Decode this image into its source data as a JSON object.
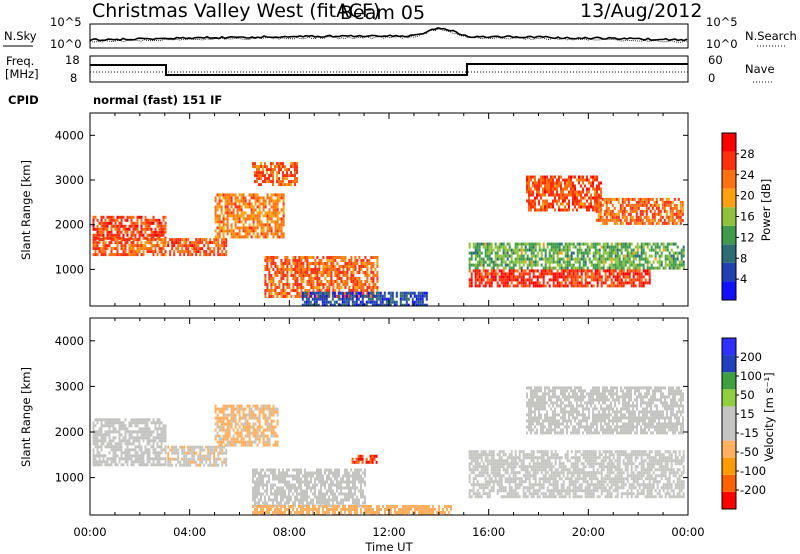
{
  "header": {
    "title": "Christmas Valley West (fitACF)",
    "beam": "Beam 05",
    "date": "13/Aug/2012"
  },
  "noise_panel": {
    "left_label": "N.Sky",
    "right_label": "N.Search",
    "left_ticks": [
      "10^5",
      "10^0"
    ],
    "right_ticks": [
      "10^5",
      "10^0"
    ]
  },
  "freq_panel": {
    "left_label_1": "Freq.",
    "left_label_2": "[MHz]",
    "right_label": "Nave",
    "left_ticks": [
      "18",
      "8"
    ],
    "right_ticks": [
      "60",
      "0"
    ]
  },
  "cpid": {
    "label": "CPID",
    "value": "normal (fast) 151 IF"
  },
  "colors": {
    "power_scale": [
      "#1010ff",
      "#2040b0",
      "#2e6c74",
      "#3f9a4c",
      "#8fc23c",
      "#ffa010",
      "#ff7010",
      "#ff3010",
      "#ff0000"
    ],
    "velocity_scale": [
      "#ff0000",
      "#ff6000",
      "#ff9a00",
      "#ffb060",
      "#c4c4c0",
      "#c4c4c0",
      "#90d040",
      "#40a040",
      "#2040c0",
      "#3030ff"
    ]
  },
  "chart_data": [
    {
      "type": "heatmap",
      "name": "power",
      "ylabel": "Slant Range [km]",
      "ylim": [
        180,
        4500
      ],
      "yticks": [
        1000,
        2000,
        3000,
        4000
      ],
      "xlim": [
        0,
        24
      ],
      "colorbar_label": "Power [dB]",
      "colorbar_range": [
        0,
        32
      ],
      "colorbar_ticks": [
        4,
        8,
        12,
        16,
        20,
        24,
        28
      ],
      "regions": [
        {
          "t0": 0.1,
          "t1": 3.0,
          "r0": 1700,
          "r1": 2200,
          "value": 26
        },
        {
          "t0": 0.1,
          "t1": 3.0,
          "r0": 1350,
          "r1": 1700,
          "value": 24
        },
        {
          "t0": 3.1,
          "t1": 5.5,
          "r0": 1300,
          "r1": 1700,
          "value": 25
        },
        {
          "t0": 5.0,
          "t1": 7.8,
          "r0": 1700,
          "r1": 2700,
          "value": 22
        },
        {
          "t0": 6.5,
          "t1": 8.3,
          "r0": 2900,
          "r1": 3400,
          "value": 24
        },
        {
          "t0": 7.0,
          "t1": 11.5,
          "r0": 400,
          "r1": 1300,
          "value": 24
        },
        {
          "t0": 8.5,
          "t1": 13.5,
          "r0": 200,
          "r1": 500,
          "value": 6
        },
        {
          "t0": 15.2,
          "t1": 23.8,
          "r0": 1000,
          "r1": 1600,
          "value": 14
        },
        {
          "t0": 15.2,
          "t1": 22.5,
          "r0": 600,
          "r1": 1000,
          "value": 27
        },
        {
          "t0": 17.5,
          "t1": 20.5,
          "r0": 2300,
          "r1": 3100,
          "value": 25
        },
        {
          "t0": 20.3,
          "t1": 23.8,
          "r0": 2000,
          "r1": 2600,
          "value": 24
        }
      ]
    },
    {
      "type": "heatmap",
      "name": "velocity",
      "ylabel": "Slant Range [km]",
      "xlabel": "Time UT",
      "ylim": [
        180,
        4500
      ],
      "yticks": [
        1000,
        2000,
        3000,
        4000
      ],
      "xlim": [
        0,
        24
      ],
      "xticks": [
        "00:00",
        "04:00",
        "08:00",
        "12:00",
        "16:00",
        "20:00",
        "00:00"
      ],
      "colorbar_label": "Velocity [m s⁻¹]",
      "colorbar_range": [
        -250,
        250
      ],
      "colorbar_ticks": [
        200,
        100,
        50,
        15,
        -15,
        -50,
        -100,
        -200
      ],
      "regions": [
        {
          "t0": 0.1,
          "t1": 3.0,
          "r0": 1300,
          "r1": 2300,
          "value": 0
        },
        {
          "t0": 3.1,
          "t1": 5.5,
          "r0": 1300,
          "r1": 1700,
          "value": -40
        },
        {
          "t0": 5.0,
          "t1": 7.5,
          "r0": 1700,
          "r1": 2600,
          "value": -60
        },
        {
          "t0": 6.5,
          "t1": 11.0,
          "r0": 400,
          "r1": 1200,
          "value": 0
        },
        {
          "t0": 6.5,
          "t1": 14.5,
          "r0": 200,
          "r1": 400,
          "value": -80
        },
        {
          "t0": 10.5,
          "t1": 11.5,
          "r0": 1350,
          "r1": 1500,
          "value": -200
        },
        {
          "t0": 15.2,
          "t1": 23.8,
          "r0": 600,
          "r1": 1600,
          "value": 0
        },
        {
          "t0": 17.5,
          "t1": 23.8,
          "r0": 2000,
          "r1": 3000,
          "value": 0
        }
      ]
    }
  ]
}
